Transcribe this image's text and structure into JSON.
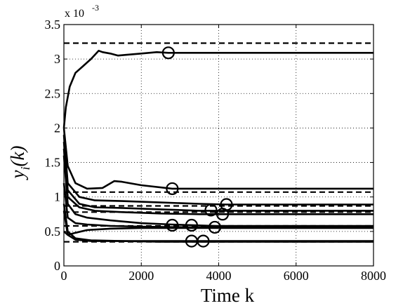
{
  "chart_data": {
    "type": "line",
    "title": "",
    "xlabel": "Time  k",
    "ylabel": "y_i(k)",
    "ylabel_main": "y",
    "ylabel_sub": "i",
    "ylabel_arg": "(k)",
    "y_multiplier": "x 10",
    "y_multiplier_exp": "-3",
    "xlim": [
      0,
      8000
    ],
    "ylim": [
      0,
      3.5
    ],
    "x_ticks": [
      0,
      2000,
      4000,
      6000,
      8000
    ],
    "x_tick_labels": [
      "0",
      "2000",
      "4000",
      "6000",
      "8000"
    ],
    "y_ticks": [
      0,
      0.5,
      1,
      1.5,
      2,
      2.5,
      3,
      3.5
    ],
    "y_tick_labels": [
      "0",
      "0.5",
      "1",
      "1.5",
      "2",
      "2.5",
      "3",
      "3.5"
    ],
    "grid": true,
    "series": [
      {
        "x": [
          0,
          50,
          150,
          300,
          500,
          700,
          900,
          1000,
          1200,
          1400,
          1600,
          2000,
          2400,
          2700,
          8000
        ],
        "y": [
          2.0,
          2.3,
          2.6,
          2.8,
          2.9,
          3.0,
          3.12,
          3.1,
          3.08,
          3.05,
          3.06,
          3.08,
          3.1,
          3.09,
          3.09
        ]
      },
      {
        "x": [
          0,
          100,
          300,
          600,
          1000,
          1300,
          1500,
          2000,
          2800,
          8000
        ],
        "y": [
          2.0,
          1.45,
          1.2,
          1.12,
          1.13,
          1.23,
          1.22,
          1.17,
          1.12,
          1.12
        ]
      },
      {
        "x": [
          0,
          100,
          400,
          800,
          1500,
          2500,
          3500,
          4200,
          8000
        ],
        "y": [
          1.9,
          1.2,
          1.0,
          0.95,
          0.94,
          0.92,
          0.9,
          0.89,
          0.89
        ]
      },
      {
        "x": [
          0,
          100,
          400,
          800,
          1500,
          2500,
          3500,
          4100,
          8000
        ],
        "y": [
          1.8,
          1.1,
          0.9,
          0.85,
          0.84,
          0.82,
          0.8,
          0.8,
          0.8
        ]
      },
      {
        "x": [
          0,
          100,
          400,
          800,
          1500,
          2500,
          3500,
          4100,
          8000
        ],
        "y": [
          1.7,
          1.0,
          0.85,
          0.8,
          0.78,
          0.76,
          0.75,
          0.75,
          0.75
        ]
      },
      {
        "x": [
          0,
          100,
          300,
          600,
          1200,
          2000,
          2800,
          3900,
          8000
        ],
        "y": [
          1.6,
          0.9,
          0.75,
          0.7,
          0.66,
          0.62,
          0.6,
          0.58,
          0.58
        ]
      },
      {
        "x": [
          0,
          100,
          300,
          600,
          1200,
          2000,
          3300,
          8000
        ],
        "y": [
          1.2,
          0.7,
          0.62,
          0.6,
          0.58,
          0.57,
          0.56,
          0.56
        ]
      },
      {
        "x": [
          0,
          100,
          300,
          600,
          1200,
          2000,
          2800,
          8000
        ],
        "y": [
          0.5,
          0.45,
          0.48,
          0.52,
          0.54,
          0.55,
          0.55,
          0.55
        ]
      },
      {
        "x": [
          0,
          100,
          300,
          700,
          1500,
          2500,
          3600,
          8000
        ],
        "y": [
          0.8,
          0.45,
          0.38,
          0.36,
          0.36,
          0.35,
          0.35,
          0.35
        ]
      },
      {
        "x": [
          0,
          100,
          300,
          700,
          1500,
          2500,
          3300,
          8000
        ],
        "y": [
          0.9,
          0.5,
          0.4,
          0.37,
          0.36,
          0.36,
          0.36,
          0.36
        ]
      }
    ],
    "reference_lines": [
      3.23,
      1.07,
      0.87,
      0.78,
      0.58,
      0.35
    ],
    "markers": [
      {
        "x": 2700,
        "y": 3.09
      },
      {
        "x": 2800,
        "y": 1.12
      },
      {
        "x": 3800,
        "y": 0.81
      },
      {
        "x": 4200,
        "y": 0.89
      },
      {
        "x": 4100,
        "y": 0.75
      },
      {
        "x": 2800,
        "y": 0.59
      },
      {
        "x": 3300,
        "y": 0.59
      },
      {
        "x": 3900,
        "y": 0.56
      },
      {
        "x": 3300,
        "y": 0.36
      },
      {
        "x": 3600,
        "y": 0.36
      }
    ]
  }
}
